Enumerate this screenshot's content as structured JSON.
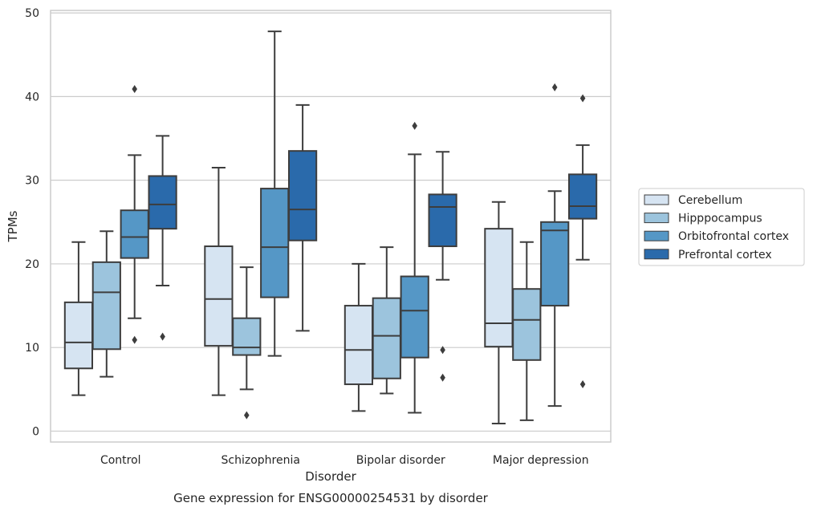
{
  "chart_data": {
    "type": "boxplot",
    "xlabel": "Disorder",
    "ylabel": "TPMs",
    "caption": "Gene expression for ENSG00000254531 by disorder",
    "ylim": [
      -1.3,
      50.3
    ],
    "yticks": [
      0,
      10,
      20,
      30,
      40,
      50
    ],
    "grid": true,
    "legend_position": "right",
    "categories": [
      "Control",
      "Schizophrenia",
      "Bipolar disorder",
      "Major depression"
    ],
    "series": [
      {
        "name": "Cerebellum",
        "color": "#d6e4f2",
        "boxes": [
          {
            "whislo": 4.3,
            "q1": 7.5,
            "med": 10.6,
            "q3": 15.4,
            "whishi": 22.6,
            "fliers": []
          },
          {
            "whislo": 4.3,
            "q1": 10.2,
            "med": 15.8,
            "q3": 22.1,
            "whishi": 31.5,
            "fliers": []
          },
          {
            "whislo": 2.4,
            "q1": 5.6,
            "med": 9.7,
            "q3": 15.0,
            "whishi": 20.0,
            "fliers": []
          },
          {
            "whislo": 0.9,
            "q1": 10.1,
            "med": 12.9,
            "q3": 24.2,
            "whishi": 27.4,
            "fliers": []
          }
        ]
      },
      {
        "name": "Hipppocampus",
        "color": "#9cc4dd",
        "boxes": [
          {
            "whislo": 6.5,
            "q1": 9.8,
            "med": 16.6,
            "q3": 20.2,
            "whishi": 23.9,
            "fliers": []
          },
          {
            "whislo": 5.0,
            "q1": 9.1,
            "med": 10.0,
            "q3": 13.5,
            "whishi": 19.6,
            "fliers": [
              1.9
            ]
          },
          {
            "whislo": 4.5,
            "q1": 6.3,
            "med": 11.4,
            "q3": 15.9,
            "whishi": 22.0,
            "fliers": []
          },
          {
            "whislo": 1.3,
            "q1": 8.5,
            "med": 13.3,
            "q3": 17.0,
            "whishi": 22.6,
            "fliers": []
          }
        ]
      },
      {
        "name": "Orbitofrontal cortex",
        "color": "#5597c6",
        "boxes": [
          {
            "whislo": 13.5,
            "q1": 20.7,
            "med": 23.2,
            "q3": 26.4,
            "whishi": 33.0,
            "fliers": [
              10.9,
              40.9
            ]
          },
          {
            "whislo": 9.0,
            "q1": 16.0,
            "med": 22.0,
            "q3": 29.0,
            "whishi": 47.8,
            "fliers": []
          },
          {
            "whislo": 2.2,
            "q1": 8.8,
            "med": 14.4,
            "q3": 18.5,
            "whishi": 33.1,
            "fliers": [
              36.5
            ]
          },
          {
            "whislo": 3.0,
            "q1": 15.0,
            "med": 24.0,
            "q3": 25.0,
            "whishi": 28.7,
            "fliers": [
              41.1
            ]
          }
        ]
      },
      {
        "name": "Prefrontal cortex",
        "color": "#2a6aab",
        "boxes": [
          {
            "whislo": 17.4,
            "q1": 24.2,
            "med": 27.1,
            "q3": 30.5,
            "whishi": 35.3,
            "fliers": [
              11.3
            ]
          },
          {
            "whislo": 12.0,
            "q1": 22.8,
            "med": 26.5,
            "q3": 33.5,
            "whishi": 39.0,
            "fliers": []
          },
          {
            "whislo": 18.1,
            "q1": 22.1,
            "med": 26.8,
            "q3": 28.3,
            "whishi": 33.4,
            "fliers": [
              9.7,
              6.4
            ]
          },
          {
            "whislo": 20.5,
            "q1": 25.4,
            "med": 26.9,
            "q3": 30.7,
            "whishi": 34.2,
            "fliers": [
              39.8,
              5.6
            ]
          }
        ]
      }
    ]
  }
}
